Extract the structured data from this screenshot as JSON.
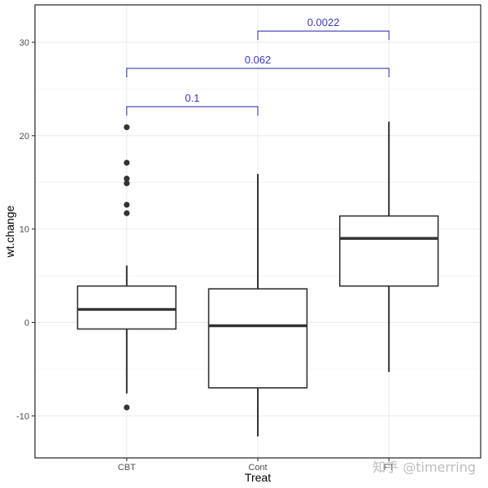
{
  "chart_data": {
    "type": "box",
    "xlabel": "Treat",
    "ylabel": "wt.change",
    "categories": [
      "CBT",
      "Cont",
      "FT"
    ],
    "ylim": [
      -14.5,
      34
    ],
    "yticks": [
      -10,
      0,
      10,
      20,
      30
    ],
    "grid": true,
    "boxes": [
      {
        "category": "CBT",
        "lower_whisker": -7.6,
        "q1": -0.7,
        "median": 1.4,
        "q3": 3.9,
        "upper_whisker": 6.1,
        "outliers": [
          20.9,
          17.1,
          15.4,
          14.9,
          12.6,
          11.7,
          -9.1
        ]
      },
      {
        "category": "Cont",
        "lower_whisker": -12.2,
        "q1": -7.0,
        "median": -0.35,
        "q3": 3.6,
        "upper_whisker": 15.9,
        "outliers": []
      },
      {
        "category": "FT",
        "lower_whisker": -5.3,
        "q1": 3.9,
        "median": 9.0,
        "q3": 11.4,
        "upper_whisker": 21.5,
        "outliers": []
      }
    ],
    "comparisons": [
      {
        "from": "CBT",
        "to": "Cont",
        "label": "0.1",
        "level": 23.1
      },
      {
        "from": "CBT",
        "to": "FT",
        "label": "0.062",
        "level": 27.2
      },
      {
        "from": "Cont",
        "to": "FT",
        "label": "0.0022",
        "level": 31.2
      }
    ],
    "colors": {
      "bracket": "#3b3bb5",
      "box": "#333333",
      "grid": "#ebebeb",
      "panel_border": "#333333"
    }
  },
  "watermark": "知乎 @timerring"
}
